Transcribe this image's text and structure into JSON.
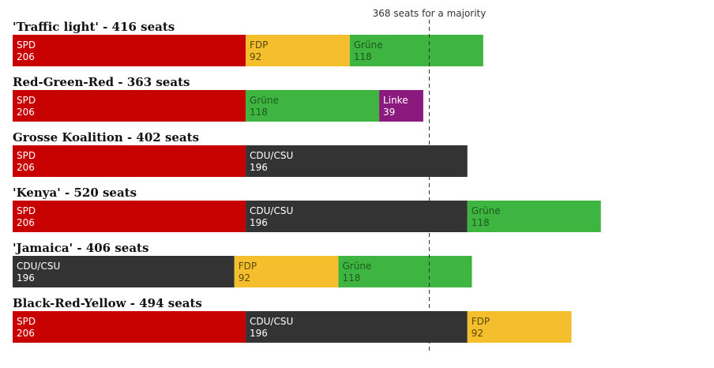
{
  "chart_data": {
    "type": "bar",
    "orientation": "horizontal-stacked",
    "majority": {
      "value": 368,
      "label": "368 seats for a majority"
    },
    "x_domain": [
      0,
      620
    ],
    "party_colors": {
      "SPD": "#c70000",
      "FDP": "#f5be2c",
      "Grüne": "#3db540",
      "Linke": "#8b1a7e",
      "CDU/CSU": "#333333"
    },
    "label_colors": {
      "SPD": "#ffffff",
      "FDP": "#5a4a10",
      "Grüne": "#1d5a1f",
      "Linke": "#ffffff",
      "CDU/CSU": "#ffffff"
    },
    "coalitions": [
      {
        "title": "'Traffic light' - 416 seats",
        "parties": [
          {
            "name": "SPD",
            "seats": 206
          },
          {
            "name": "FDP",
            "seats": 92
          },
          {
            "name": "Grüne",
            "seats": 118
          }
        ]
      },
      {
        "title": "Red-Green-Red - 363 seats",
        "parties": [
          {
            "name": "SPD",
            "seats": 206
          },
          {
            "name": "Grüne",
            "seats": 118
          },
          {
            "name": "Linke",
            "seats": 39
          }
        ]
      },
      {
        "title": "Grosse Koalition - 402 seats",
        "parties": [
          {
            "name": "SPD",
            "seats": 206
          },
          {
            "name": "CDU/CSU",
            "seats": 196
          }
        ]
      },
      {
        "title": "'Kenya' - 520 seats",
        "parties": [
          {
            "name": "SPD",
            "seats": 206
          },
          {
            "name": "CDU/CSU",
            "seats": 196
          },
          {
            "name": "Grüne",
            "seats": 118
          }
        ]
      },
      {
        "title": "'Jamaica' - 406 seats",
        "parties": [
          {
            "name": "CDU/CSU",
            "seats": 196
          },
          {
            "name": "FDP",
            "seats": 92
          },
          {
            "name": "Grüne",
            "seats": 118
          }
        ]
      },
      {
        "title": "Black-Red-Yellow - 494 seats",
        "parties": [
          {
            "name": "SPD",
            "seats": 206
          },
          {
            "name": "CDU/CSU",
            "seats": 196
          },
          {
            "name": "FDP",
            "seats": 92
          }
        ]
      }
    ]
  }
}
